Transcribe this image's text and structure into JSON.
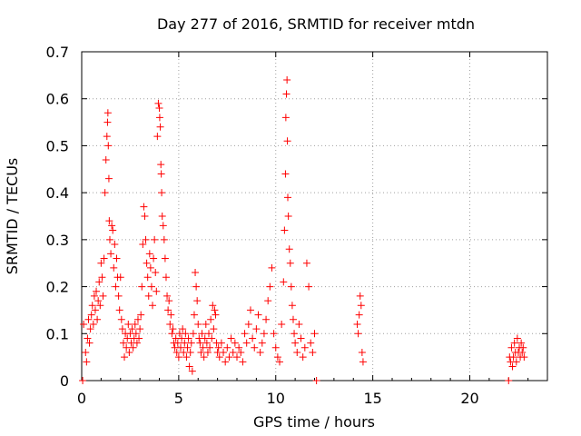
{
  "chart_data": {
    "type": "scatter",
    "title": "Day 277 of 2016, SRMTID for receiver mtdn",
    "xlabel": "GPS time / hours",
    "ylabel": "SRMTID / TECUs",
    "xlim": [
      0,
      24
    ],
    "ylim": [
      0,
      0.7
    ],
    "xticks": [
      0,
      5,
      10,
      15,
      20
    ],
    "yticks": [
      0,
      0.1,
      0.2,
      0.3,
      0.4,
      0.5,
      0.6,
      0.7
    ],
    "xtick_labels": [
      "0",
      "5",
      "10",
      "15",
      "20"
    ],
    "ytick_labels": [
      "0",
      "0.1",
      "0.2",
      "0.3",
      "0.4",
      "0.5",
      "0.6",
      "0.7"
    ],
    "grid": true,
    "marker": "+",
    "color": "#ff0000",
    "series": [
      {
        "name": "SRMTID",
        "x": [
          0.05,
          0.1,
          0.2,
          0.25,
          0.3,
          0.35,
          0.4,
          0.45,
          0.5,
          0.55,
          0.6,
          0.65,
          0.7,
          0.75,
          0.8,
          0.85,
          0.9,
          0.95,
          1.0,
          1.05,
          1.1,
          1.15,
          1.2,
          1.25,
          1.3,
          1.33,
          1.35,
          1.37,
          1.4,
          1.42,
          1.45,
          1.5,
          1.55,
          1.6,
          1.65,
          1.7,
          1.75,
          1.8,
          1.85,
          1.9,
          1.95,
          2.0,
          2.05,
          2.1,
          2.15,
          2.2,
          2.25,
          2.3,
          2.35,
          2.4,
          2.45,
          2.5,
          2.55,
          2.6,
          2.65,
          2.7,
          2.75,
          2.8,
          2.85,
          2.9,
          2.95,
          3.0,
          3.05,
          3.1,
          3.15,
          3.2,
          3.25,
          3.3,
          3.35,
          3.4,
          3.45,
          3.5,
          3.55,
          3.6,
          3.65,
          3.7,
          3.75,
          3.8,
          3.85,
          3.9,
          3.95,
          4.0,
          4.02,
          4.05,
          4.08,
          4.1,
          4.12,
          4.15,
          4.2,
          4.25,
          4.3,
          4.35,
          4.4,
          4.45,
          4.5,
          4.55,
          4.6,
          4.65,
          4.7,
          4.75,
          4.8,
          4.85,
          4.9,
          4.95,
          5.0,
          5.05,
          5.1,
          5.15,
          5.2,
          5.25,
          5.3,
          5.35,
          5.4,
          5.45,
          5.5,
          5.55,
          5.6,
          5.65,
          5.7,
          5.75,
          5.8,
          5.85,
          5.9,
          5.95,
          6.0,
          6.05,
          6.1,
          6.15,
          6.2,
          6.25,
          6.3,
          6.35,
          6.4,
          6.45,
          6.5,
          6.55,
          6.6,
          6.65,
          6.7,
          6.75,
          6.8,
          6.85,
          6.9,
          6.95,
          7.0,
          7.05,
          7.1,
          7.2,
          7.3,
          7.4,
          7.5,
          7.6,
          7.7,
          7.8,
          7.9,
          8.0,
          8.1,
          8.2,
          8.3,
          8.4,
          8.5,
          8.6,
          8.7,
          8.8,
          8.9,
          9.0,
          9.1,
          9.2,
          9.3,
          9.4,
          9.5,
          9.6,
          9.7,
          9.8,
          9.9,
          10.0,
          10.1,
          10.2,
          10.3,
          10.4,
          10.45,
          10.5,
          10.52,
          10.55,
          10.58,
          10.6,
          10.62,
          10.65,
          10.7,
          10.75,
          10.8,
          10.85,
          10.9,
          10.95,
          11.0,
          11.1,
          11.2,
          11.3,
          11.4,
          11.5,
          11.6,
          11.7,
          11.8,
          11.9,
          12.0,
          12.1,
          14.2,
          14.25,
          14.3,
          14.35,
          14.4,
          14.45,
          14.5,
          22.0,
          22.05,
          22.1,
          22.15,
          22.2,
          22.25,
          22.3,
          22.35,
          22.4,
          22.45,
          22.5,
          22.55,
          22.6,
          22.65,
          22.7,
          22.75,
          22.8
        ],
        "y": [
          0.0,
          0.12,
          0.06,
          0.04,
          0.09,
          0.13,
          0.08,
          0.11,
          0.14,
          0.16,
          0.12,
          0.18,
          0.15,
          0.19,
          0.13,
          0.17,
          0.21,
          0.16,
          0.25,
          0.22,
          0.18,
          0.26,
          0.4,
          0.47,
          0.52,
          0.55,
          0.57,
          0.5,
          0.43,
          0.34,
          0.3,
          0.27,
          0.33,
          0.32,
          0.24,
          0.29,
          0.2,
          0.26,
          0.22,
          0.18,
          0.15,
          0.22,
          0.13,
          0.11,
          0.08,
          0.05,
          0.1,
          0.07,
          0.09,
          0.12,
          0.06,
          0.1,
          0.08,
          0.11,
          0.07,
          0.09,
          0.12,
          0.1,
          0.08,
          0.13,
          0.09,
          0.11,
          0.14,
          0.2,
          0.29,
          0.37,
          0.35,
          0.3,
          0.25,
          0.22,
          0.18,
          0.27,
          0.24,
          0.2,
          0.16,
          0.26,
          0.3,
          0.23,
          0.19,
          0.52,
          0.59,
          0.58,
          0.56,
          0.54,
          0.46,
          0.44,
          0.4,
          0.35,
          0.33,
          0.3,
          0.26,
          0.22,
          0.18,
          0.15,
          0.17,
          0.12,
          0.14,
          0.1,
          0.11,
          0.08,
          0.07,
          0.09,
          0.06,
          0.08,
          0.05,
          0.1,
          0.07,
          0.09,
          0.11,
          0.06,
          0.08,
          0.1,
          0.05,
          0.07,
          0.09,
          0.03,
          0.06,
          0.08,
          0.02,
          0.1,
          0.14,
          0.23,
          0.2,
          0.17,
          0.12,
          0.09,
          0.08,
          0.06,
          0.1,
          0.07,
          0.05,
          0.09,
          0.12,
          0.08,
          0.06,
          0.1,
          0.07,
          0.13,
          0.09,
          0.16,
          0.11,
          0.15,
          0.14,
          0.08,
          0.06,
          0.07,
          0.05,
          0.08,
          0.06,
          0.04,
          0.07,
          0.05,
          0.09,
          0.06,
          0.08,
          0.05,
          0.07,
          0.06,
          0.04,
          0.1,
          0.08,
          0.12,
          0.15,
          0.09,
          0.07,
          0.11,
          0.14,
          0.06,
          0.08,
          0.1,
          0.13,
          0.17,
          0.2,
          0.24,
          0.1,
          0.07,
          0.05,
          0.04,
          0.12,
          0.21,
          0.32,
          0.44,
          0.56,
          0.61,
          0.64,
          0.51,
          0.39,
          0.35,
          0.28,
          0.25,
          0.2,
          0.16,
          0.13,
          0.1,
          0.08,
          0.06,
          0.12,
          0.09,
          0.05,
          0.07,
          0.25,
          0.2,
          0.08,
          0.06,
          0.1,
          0.0,
          0.12,
          0.1,
          0.14,
          0.18,
          0.16,
          0.06,
          0.04,
          0.0,
          0.05,
          0.04,
          0.07,
          0.03,
          0.05,
          0.08,
          0.06,
          0.04,
          0.09,
          0.06,
          0.07,
          0.05,
          0.08,
          0.06,
          0.07,
          0.05
        ]
      }
    ]
  }
}
